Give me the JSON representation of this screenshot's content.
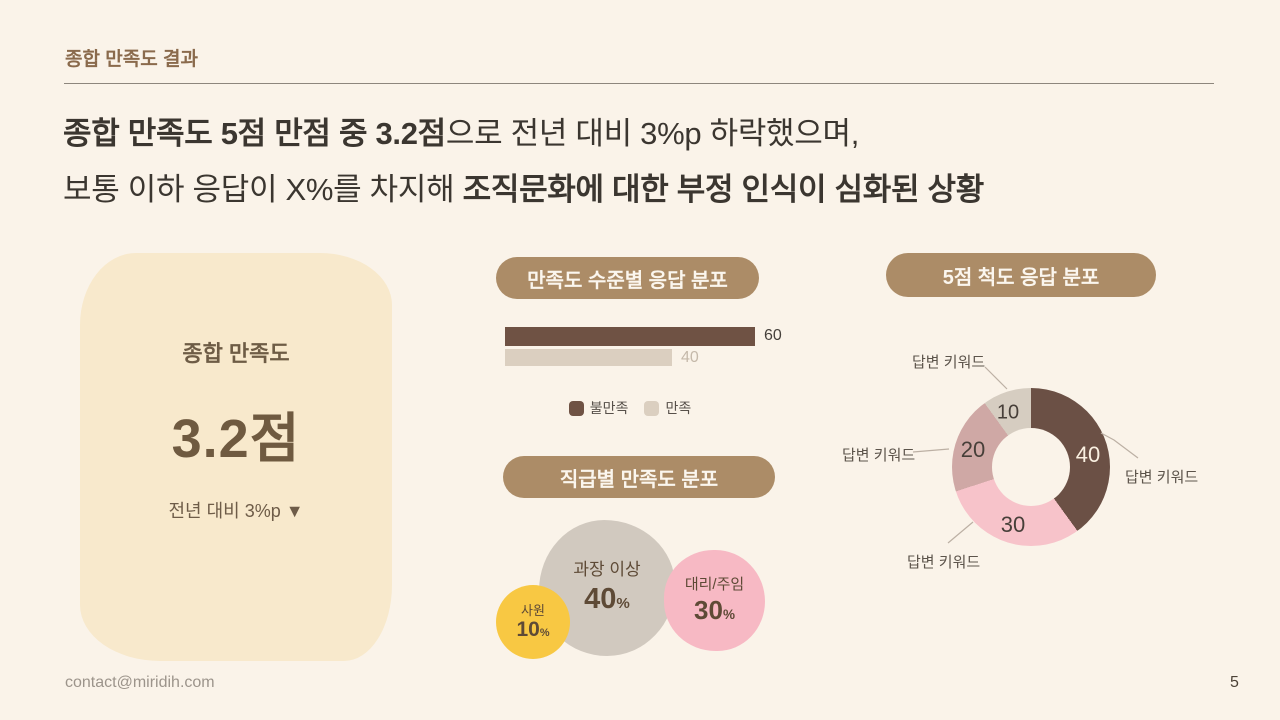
{
  "slide": {
    "kicker": "종합 만족도 결과",
    "headline_line1_bold": "종합 만족도 5점 만점 중 3.2점",
    "headline_line1_rest": "으로 전년 대비 3%p 하락했으며,",
    "headline_line2_start": "보통 이하 응답이 X%를 차지해 ",
    "headline_line2_bold": "조직문화에 대한 부정 인식이 심화된 상황",
    "footer_email": "contact@miridih.com",
    "page_number": "5"
  },
  "theme": {
    "background": "#FAF3E9",
    "accent_brown": "#8A6A4C",
    "pill_background": "#AC8C67",
    "card_background": "#F8E9CC",
    "headline_text": "#3B3630"
  },
  "score_card": {
    "title": "종합 만족도",
    "score": "3.2점",
    "delta": "전년 대비 3%p ▼"
  },
  "chart_data": [
    {
      "type": "bar",
      "title": "만족도 수준별 응답 분포",
      "orientation": "horizontal",
      "categories": [
        "불만족",
        "만족"
      ],
      "values": [
        60,
        40
      ],
      "colors": [
        "#6F5244",
        "#DBCFC0"
      ],
      "value_labels_shown": true,
      "axis_shown": false,
      "legend_position": "bottom"
    },
    {
      "type": "bubble",
      "title": "직급별 만족도 분포",
      "items": [
        {
          "label": "과장 이상",
          "value": 40,
          "unit": "%",
          "color": "#D1C9BF"
        },
        {
          "label": "대리/주임",
          "value": 30,
          "unit": "%",
          "color": "#F7B9C4"
        },
        {
          "label": "사원",
          "value": 10,
          "unit": "%",
          "color": "#F8C843"
        }
      ]
    },
    {
      "type": "pie",
      "subtype": "donut",
      "title": "5점 척도 응답 분포",
      "start_angle_deg": 0,
      "direction": "clockwise",
      "slices": [
        {
          "label": "답변 키워드",
          "value": 40,
          "color": "#6B5045"
        },
        {
          "label": "답변 키워드",
          "value": 30,
          "color": "#F7C3CA"
        },
        {
          "label": "답변 키워드",
          "value": 20,
          "color": "#CFA8A5"
        },
        {
          "label": "답변 키워드",
          "value": 10,
          "color": "#D6CDC1"
        }
      ]
    }
  ]
}
